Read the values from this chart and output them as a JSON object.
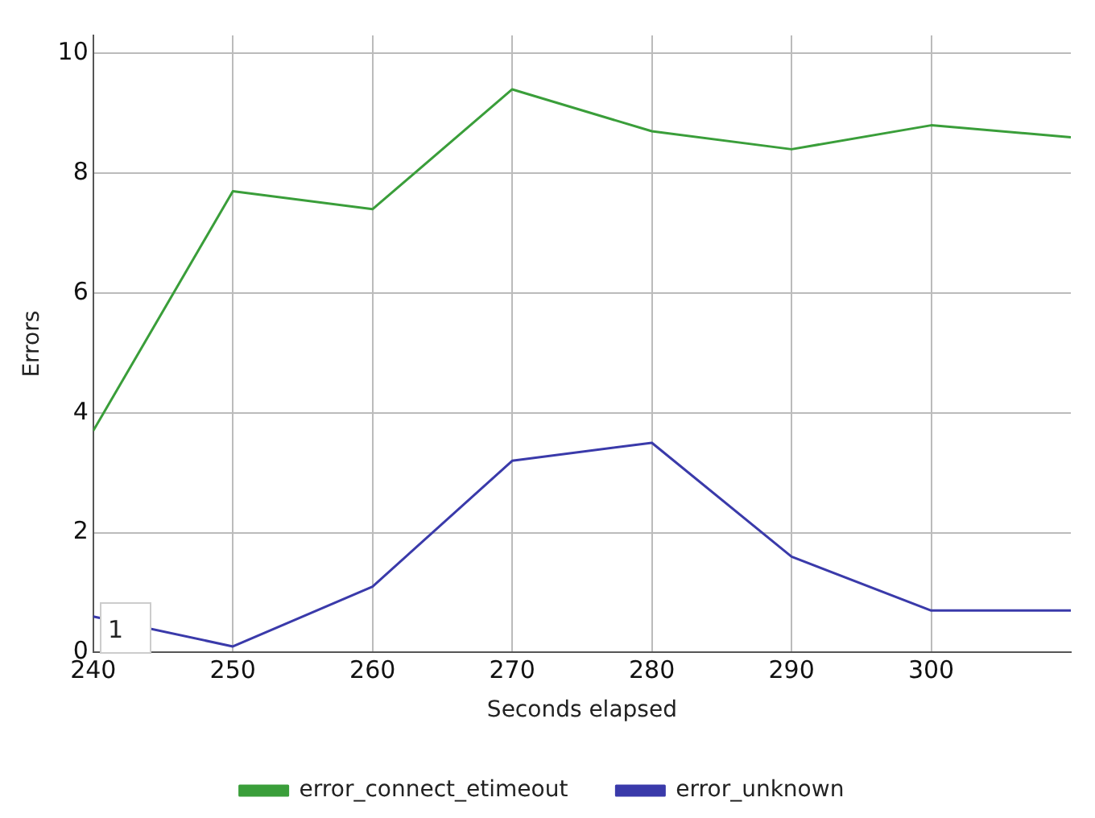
{
  "chart_data": {
    "type": "line",
    "xlabel": "Seconds elapsed",
    "ylabel": "Errors",
    "x": [
      240,
      250,
      260,
      270,
      280,
      290,
      300,
      310
    ],
    "series": [
      {
        "name": "error_connect_etimeout",
        "color": "#3a9e3a",
        "values": [
          3.7,
          7.7,
          7.4,
          9.4,
          8.7,
          8.4,
          8.8,
          8.6
        ]
      },
      {
        "name": "error_unknown",
        "color": "#3a3aaa",
        "values": [
          0.6,
          0.1,
          1.1,
          3.2,
          3.5,
          1.6,
          0.7,
          0.7
        ]
      }
    ],
    "xlim": [
      240,
      310
    ],
    "xticks": [
      240,
      250,
      260,
      270,
      280,
      290,
      300
    ],
    "ylim": [
      0,
      10.3
    ],
    "yticks": [
      0,
      2,
      4,
      6,
      8,
      10
    ],
    "grid": true,
    "legend": "bottom",
    "marker": "none",
    "line_style": "solid",
    "annotations": [
      "1"
    ]
  }
}
